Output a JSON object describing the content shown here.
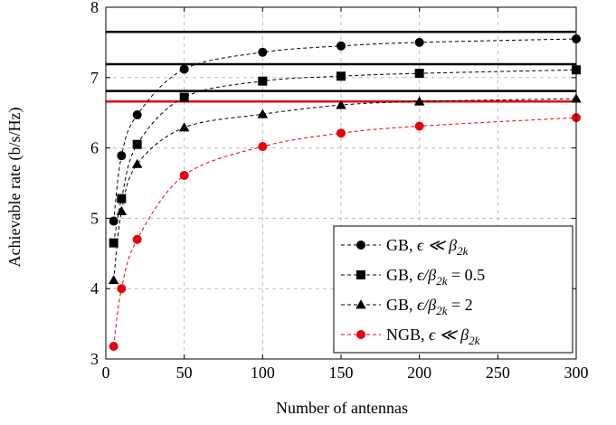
{
  "chart_data": {
    "type": "line",
    "xlabel": "Number of antennas",
    "ylabel": "Achievable rate (b/s/Hz)",
    "xlim": [
      0,
      300
    ],
    "ylim": [
      3,
      8
    ],
    "xticks": [
      0,
      50,
      100,
      150,
      200,
      250,
      300
    ],
    "yticks": [
      3,
      4,
      5,
      6,
      7,
      8
    ],
    "grid": true,
    "legend_position": "bottom-right",
    "series": [
      {
        "name": "GB, ϵ ≪ β2k",
        "legend_main": "GB, ",
        "legend_math": "ϵ ≪ β",
        "legend_sub": "2k",
        "legend_tail": "",
        "marker": "circle",
        "color": "#000000",
        "x": [
          5,
          10,
          20,
          50,
          100,
          150,
          200,
          300
        ],
        "y": [
          4.96,
          5.89,
          6.47,
          7.12,
          7.36,
          7.45,
          7.5,
          7.55
        ],
        "asymptote": 7.65
      },
      {
        "name": "GB, ϵ/β2k = 0.5",
        "legend_main": "GB, ",
        "legend_math": "ϵ/β",
        "legend_sub": "2k",
        "legend_tail": " = 0.5",
        "marker": "square",
        "color": "#000000",
        "x": [
          5,
          10,
          20,
          50,
          100,
          150,
          200,
          300
        ],
        "y": [
          4.65,
          5.28,
          6.05,
          6.72,
          6.95,
          7.02,
          7.06,
          7.11
        ],
        "asymptote": 7.19
      },
      {
        "name": "GB, ϵ/β2k = 2",
        "legend_main": "GB, ",
        "legend_math": "ϵ/β",
        "legend_sub": "2k",
        "legend_tail": " = 2",
        "marker": "triangle",
        "color": "#000000",
        "x": [
          5,
          10,
          20,
          50,
          100,
          150,
          200,
          300
        ],
        "y": [
          4.12,
          5.1,
          5.77,
          6.29,
          6.48,
          6.61,
          6.66,
          6.7
        ],
        "asymptote": 6.81
      },
      {
        "name": "NGB, ϵ ≪ β2k",
        "legend_main": "NGB, ",
        "legend_math": "ϵ ≪ β",
        "legend_sub": "2k",
        "legend_tail": "",
        "marker": "circle",
        "color": "#e8000b",
        "x": [
          5,
          10,
          20,
          50,
          100,
          150,
          200,
          300
        ],
        "y": [
          3.18,
          4.0,
          4.7,
          5.61,
          6.02,
          6.21,
          6.31,
          6.43
        ],
        "asymptote": 6.66
      }
    ]
  }
}
